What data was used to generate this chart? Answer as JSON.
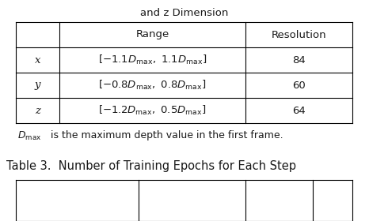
{
  "title_top": "and z Dimension",
  "table_header": [
    "",
    "Range",
    "Resolution"
  ],
  "table_rows": [
    [
      "x",
      "x_range",
      "84"
    ],
    [
      "y",
      "y_range",
      "60"
    ],
    [
      "z",
      "z_range",
      "64"
    ]
  ],
  "range_texts": [
    "$[-1.1D_{\\mathrm{max}},\\ 1.1D_{\\mathrm{max}}]$",
    "$[-0.8D_{\\mathrm{max}},\\ 0.8D_{\\mathrm{max}}]$",
    "$[-1.2D_{\\mathrm{max}},\\ 0.5D_{\\mathrm{max}}]$"
  ],
  "caption_math": "$D_{\\mathrm{max}}$",
  "caption_rest": " is the maximum depth value in the first frame.",
  "table3_title": "Table 3.  Number of Training Epochs for Each Step",
  "bg_color": "#ffffff",
  "text_color": "#1a1a1a",
  "font_size": 9.5,
  "title_font_size": 9.5,
  "caption_font_size": 9.0,
  "table3_font_size": 10.5
}
